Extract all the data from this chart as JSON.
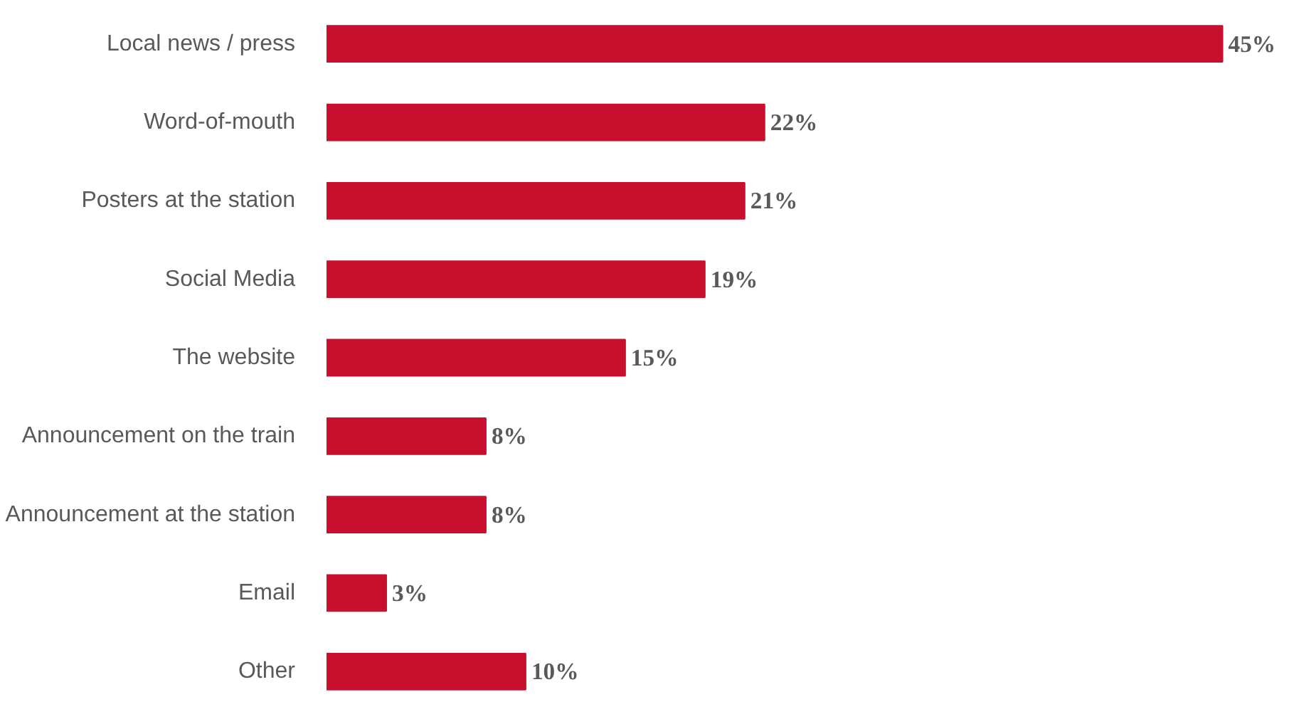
{
  "chart_data": {
    "type": "bar",
    "orientation": "horizontal",
    "categories": [
      "Local news / press",
      "Word-of-mouth",
      "Posters at the station",
      "Social Media",
      "The website",
      "Announcement on the train",
      "Announcement at the station",
      "Email",
      "Other"
    ],
    "values": [
      45,
      22,
      21,
      19,
      15,
      8,
      8,
      3,
      10
    ],
    "value_labels": [
      "45%",
      "22%",
      "21%",
      "19%",
      "15%",
      "8%",
      "8%",
      "3%",
      "10%"
    ],
    "color": "#c8102e",
    "grid": false
  }
}
